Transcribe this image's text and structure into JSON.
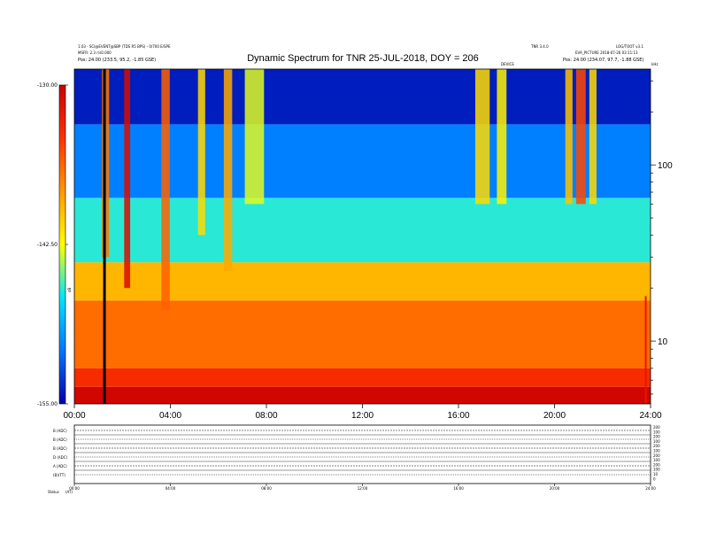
{
  "header": {
    "left_line1": "1.03 - SCI@EVENT@SBP (TDS R5 BPS) - 0/700 E/SPE",
    "left_line2": "MSFR: 2.3 r/s0.000",
    "left_line3": "Pos: 24.00 (233.5, 95.2, -1.85 GSE)",
    "right_line1": "TNR 3.4.0",
    "right_line2": "LOG/TOOT v3.1",
    "right_line3": "EVA_PICTURE 2018-07-26 03:11:13",
    "right_line4": "Pos: 24.00 (234.07, 97.7, -1.88 GSE)",
    "mid_label": "DEVICE",
    "corner_label": "kHz"
  },
  "title": "Dynamic Spectrum for TNR 25-JUL-2018, DOY = 206",
  "colorbar": {
    "label": "dB",
    "ticks": [
      "-130.00",
      "-142.50",
      "-155.00"
    ],
    "stops": [
      "#cc0000",
      "#ff3300",
      "#ff9900",
      "#ffff00",
      "#00e5ff",
      "#0077ff",
      "#0000aa"
    ]
  },
  "chart_data": {
    "type": "heatmap",
    "title": "Dynamic Spectrum for TNR 25-JUL-2018, DOY = 206",
    "x_ticks": [
      "00:00",
      "04:00",
      "08:00",
      "12:00",
      "16:00",
      "20:00",
      "24:00"
    ],
    "x_range": [
      0,
      24
    ],
    "y_scale": "log",
    "y_ticks": [
      100,
      10
    ],
    "y_range": [
      4.4,
      350
    ],
    "z_range": [
      -155.0,
      -130.0
    ],
    "colorbar_ticks": [
      -130.0,
      -142.5,
      -155.0
    ],
    "bands": [
      {
        "freq_from": 4.4,
        "freq_to": 5.5,
        "level": -130.5
      },
      {
        "freq_from": 5.5,
        "freq_to": 7.0,
        "level": -133.5
      },
      {
        "freq_from": 7.0,
        "freq_to": 17.0,
        "level": -136.5
      },
      {
        "freq_from": 17.0,
        "freq_to": 28.0,
        "level": -139.5
      },
      {
        "freq_from": 28.0,
        "freq_to": 65.0,
        "level": -146.0
      },
      {
        "freq_from": 65.0,
        "freq_to": 170.0,
        "level": -150.5
      },
      {
        "freq_from": 170.0,
        "freq_to": 350.0,
        "level": -154.0
      }
    ],
    "bursts": [
      {
        "t": 1.3,
        "w": 0.3,
        "level": -137.0,
        "f_min": 30
      },
      {
        "t": 2.2,
        "w": 0.25,
        "level": -131.0,
        "f_min": 20
      },
      {
        "t": 3.8,
        "w": 0.35,
        "level": -136.0,
        "f_min": 15
      },
      {
        "t": 5.3,
        "w": 0.3,
        "level": -141.0,
        "f_min": 40
      },
      {
        "t": 6.4,
        "w": 0.35,
        "level": -139.0,
        "f_min": 25
      },
      {
        "t": 7.5,
        "w": 0.8,
        "level": -143.0,
        "f_min": 60
      },
      {
        "t": 17.0,
        "w": 0.6,
        "level": -141.0,
        "f_min": 60
      },
      {
        "t": 17.8,
        "w": 0.4,
        "level": -142.0,
        "f_min": 60
      },
      {
        "t": 20.6,
        "w": 0.3,
        "level": -140.0,
        "f_min": 60
      },
      {
        "t": 21.1,
        "w": 0.4,
        "level": -135.0,
        "f_min": 60
      },
      {
        "t": 21.6,
        "w": 0.3,
        "level": -141.0,
        "f_min": 60
      }
    ],
    "data_gap": {
      "t": 1.2,
      "value": "no data"
    },
    "spike": {
      "t": 23.8,
      "level": -132.0
    }
  },
  "lower_panel": {
    "row_labels": [
      "B (ADC)",
      "B (ADC)",
      "B (ADC)",
      "D (ADC)",
      "A (ADC)",
      "(B)(TT)"
    ],
    "right_labels": [
      "200",
      "100",
      "200",
      "100",
      "200",
      "100",
      "200",
      "100",
      "200",
      "100",
      "10",
      "0"
    ],
    "x_ticks": [
      "00:00",
      "04:00",
      "08:00",
      "12:00",
      "16:00",
      "20:00",
      "24:00"
    ],
    "footer_left": "Status",
    "footer_units": "(AT)"
  }
}
